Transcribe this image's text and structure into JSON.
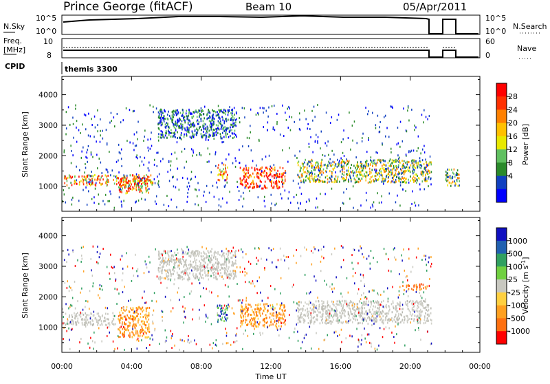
{
  "header": {
    "station": "Prince George (fitACF)",
    "beam": "Beam 10",
    "date": "05/Apr/2011"
  },
  "top_panels": {
    "nsky": {
      "label": "N.Sky",
      "ticks": [
        "10^5",
        "10^0"
      ],
      "right_label": "N.Search",
      "right_ticks": [
        "10^5",
        "10^0"
      ]
    },
    "freq": {
      "label_line1": "Freq.",
      "label_line2": "[MHz]",
      "ticks": [
        "10",
        "8"
      ],
      "right_label": "Nave",
      "right_ticks": [
        "60",
        "0"
      ]
    },
    "cpid": {
      "label": "CPID",
      "value": "themis 3300"
    }
  },
  "x_axis": {
    "title": "Time UT",
    "ticks": [
      "00:00",
      "04:00",
      "08:00",
      "12:00",
      "16:00",
      "20:00",
      "00:00"
    ],
    "tick_hours": [
      0,
      4,
      8,
      12,
      16,
      20,
      24
    ]
  },
  "chart_data": [
    {
      "type": "heatmap",
      "title": "",
      "xlabel": "Time UT",
      "ylabel": "Slant Range [km]",
      "xlim_hours": [
        0,
        24
      ],
      "ylim_km": [
        180,
        4600
      ],
      "y_ticks": [
        "4000",
        "3000",
        "2000",
        "1000"
      ],
      "y_tick_values": [
        4000,
        3000,
        2000,
        1000
      ],
      "colorbar": {
        "label": "Power [dB]",
        "ticks": [
          "28",
          "24",
          "20",
          "16",
          "12",
          "8",
          "4"
        ],
        "colors": [
          "#ff0000",
          "#ff3000",
          "#ff8000",
          "#ffc000",
          "#e8e800",
          "#60c060",
          "#2a8a2a",
          "#1040c0",
          "#0000ff"
        ]
      },
      "scatter_regions": [
        {
          "t0": 0.1,
          "t1": 5.2,
          "r0": 1050,
          "r1": 1400,
          "value": "high"
        },
        {
          "t0": 3.2,
          "t1": 5.0,
          "r0": 800,
          "r1": 1300,
          "value": "high"
        },
        {
          "t0": 8.9,
          "t1": 9.5,
          "r0": 1200,
          "r1": 1750,
          "value": "high"
        },
        {
          "t0": 10.2,
          "t1": 12.8,
          "r0": 950,
          "r1": 1650,
          "value": "very-high"
        },
        {
          "t0": 13.5,
          "t1": 21.2,
          "r0": 1150,
          "r1": 1900,
          "value": "medium"
        },
        {
          "t0": 5.5,
          "t1": 10.0,
          "r0": 2600,
          "r1": 3550,
          "value": "arc"
        },
        {
          "t0": 22.0,
          "t1": 22.8,
          "r0": 1000,
          "r1": 1600,
          "value": "medium"
        }
      ]
    },
    {
      "type": "heatmap",
      "title": "",
      "xlabel": "Time UT",
      "ylabel": "Slant Range [km]",
      "xlim_hours": [
        0,
        24
      ],
      "ylim_km": [
        180,
        4600
      ],
      "y_ticks": [
        "4000",
        "3000",
        "2000",
        "1000"
      ],
      "y_tick_values": [
        4000,
        3000,
        2000,
        1000
      ],
      "colorbar": {
        "label": "Velocity [m s^-1]",
        "ticks": [
          "1000",
          "500",
          "100",
          "25",
          "-25",
          "-100",
          "-500",
          "-1000"
        ],
        "colors": [
          "#1010c0",
          "#2060b0",
          "#30a060",
          "#70d040",
          "#c8c8c0",
          "#ffd040",
          "#ffa020",
          "#ff7010",
          "#ff0000"
        ]
      },
      "scatter_regions": [
        {
          "t0": 0.1,
          "t1": 3.0,
          "r0": 1100,
          "r1": 1500,
          "value": "ground-grey"
        },
        {
          "t0": 3.2,
          "t1": 5.0,
          "r0": 700,
          "r1": 1700,
          "value": "-100"
        },
        {
          "t0": 8.9,
          "t1": 9.5,
          "r0": 1200,
          "r1": 1750,
          "value": "100"
        },
        {
          "t0": 10.2,
          "t1": 12.8,
          "r0": 1050,
          "r1": 1800,
          "value": "-100"
        },
        {
          "t0": 13.5,
          "t1": 21.2,
          "r0": 1150,
          "r1": 1900,
          "value": "ground-grey"
        },
        {
          "t0": 5.5,
          "t1": 10.0,
          "r0": 2600,
          "r1": 3550,
          "value": "ground-grey"
        },
        {
          "t0": 19.5,
          "t1": 21.0,
          "r0": 2250,
          "r1": 2450,
          "value": "-500"
        }
      ]
    }
  ]
}
